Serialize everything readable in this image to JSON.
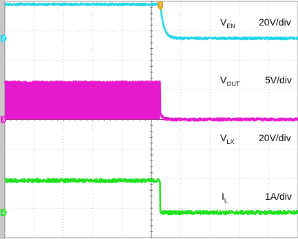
{
  "chart_data": {
    "type": "line",
    "title": "",
    "xlabel": "",
    "ylabel": "",
    "grid": true,
    "grid_divisions": {
      "x": 10,
      "y": 8
    },
    "trigger_marker": "T",
    "colors": {
      "background": "#ffffff",
      "grid": "#9a9a9a",
      "axis_strip": "#c8c8c8"
    },
    "series": [
      {
        "name_main": "V",
        "name_sub": "EN",
        "scale": "20V/div",
        "channel_marker": "1",
        "color": "#1f1fbf",
        "reference_div": 5.0,
        "before_div": 1.85,
        "after_div": 1.85,
        "edge": "step",
        "noise_div": 0.045
      },
      {
        "name_main": "V",
        "name_sub": "OUT",
        "scale": "5V/div",
        "channel_marker": "2",
        "color": "#22d5e6",
        "reference_div": 2.75,
        "before_div": 1.15,
        "after_div": 0.0,
        "edge": "exp",
        "tau_div": 0.12,
        "noise_div": 0.035
      },
      {
        "name_main": "V",
        "name_sub": "LX",
        "scale": "20V/div",
        "channel_marker": "3",
        "color": "#e619cf",
        "reference_div": 0.0,
        "before_div": 1.25,
        "after_div": 0.0,
        "edge": "switching",
        "noise_div": 0.045
      },
      {
        "name_main": "I",
        "name_sub": "L",
        "scale": "1A/div",
        "channel_marker": "4",
        "color": "#1fe11f",
        "reference_div": -3.15,
        "before_div": 1.08,
        "after_div": 0.0,
        "edge": "step",
        "noise_div": 0.06
      }
    ]
  }
}
